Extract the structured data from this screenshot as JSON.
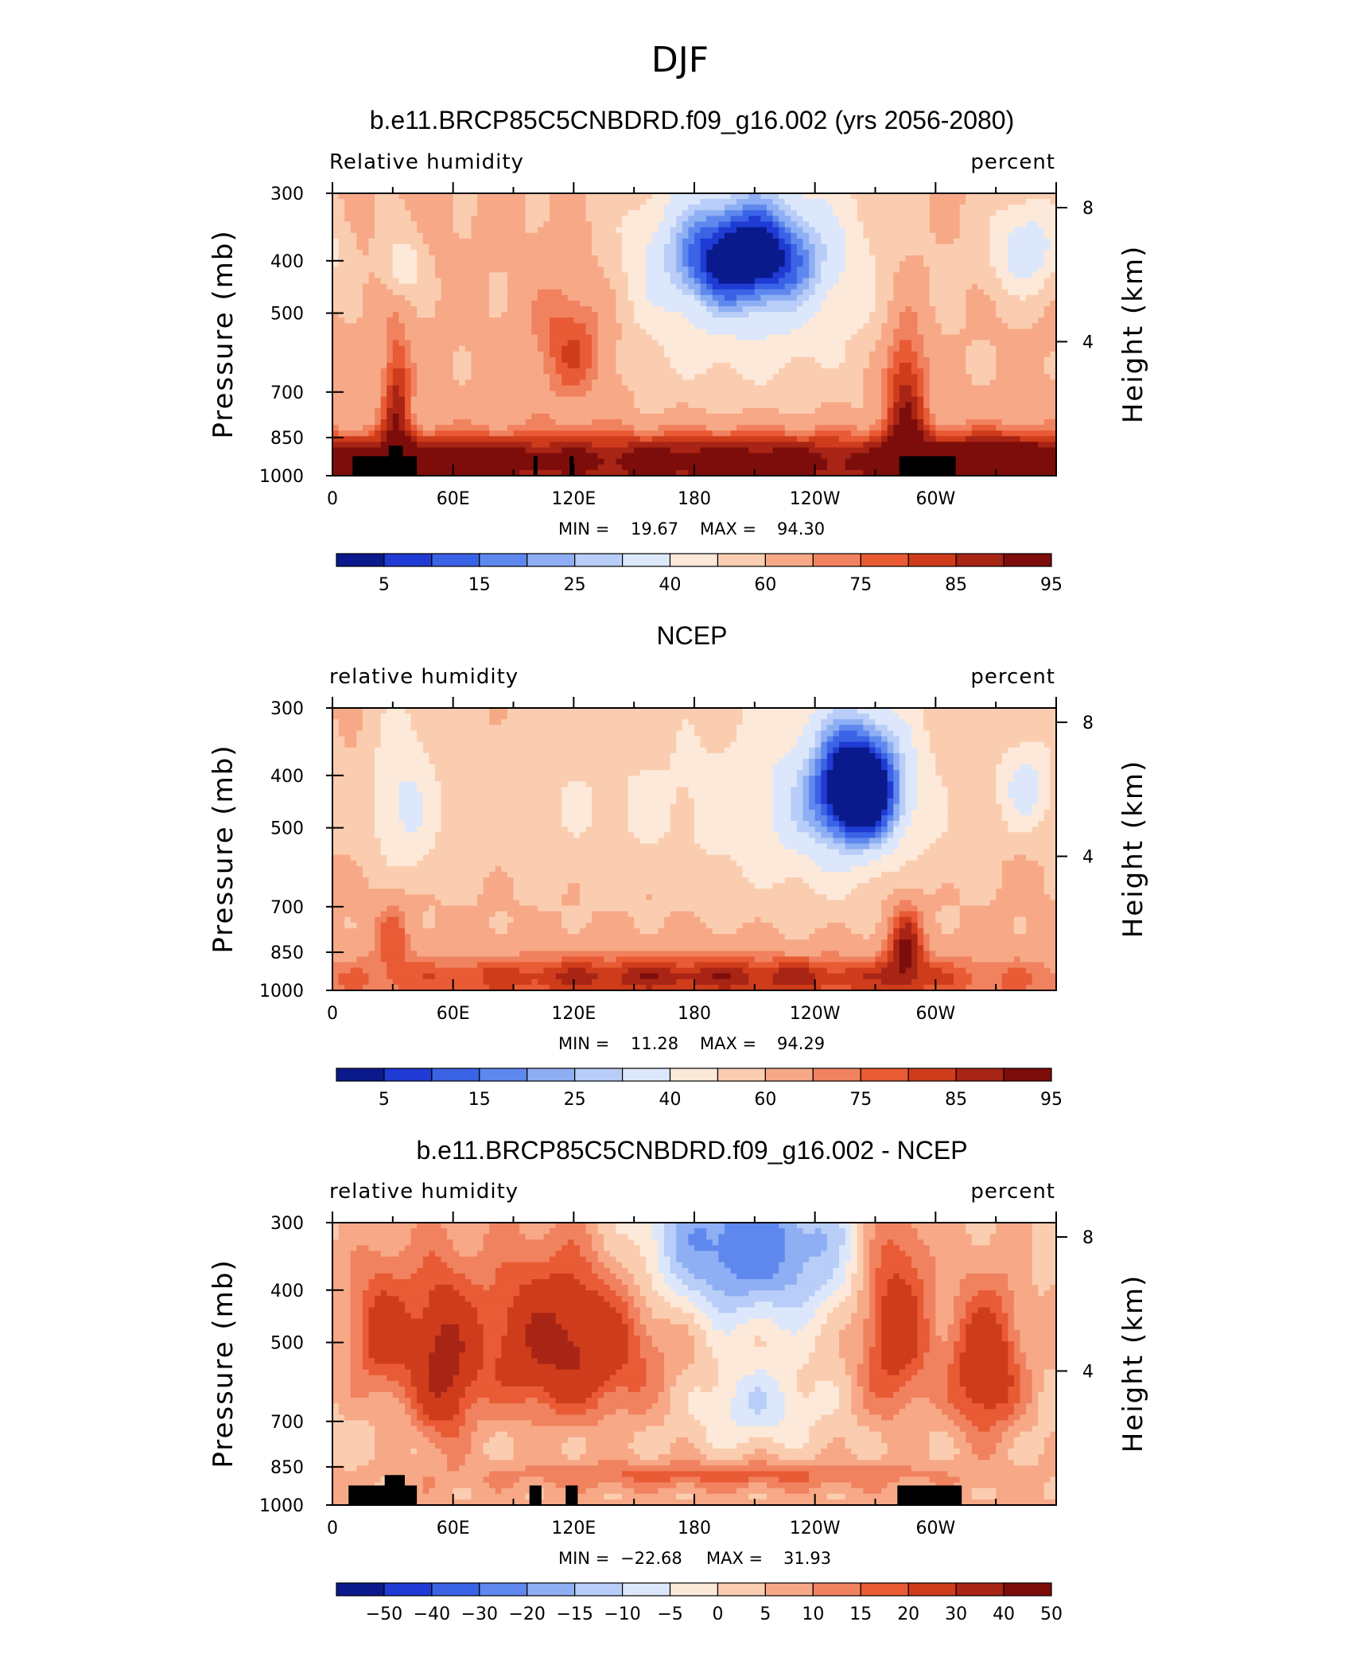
{
  "figure_title": "DJF",
  "chart_data": [
    {
      "type": "heatmap",
      "title": "b.e11.BRCP85C5CNBDRD.f09_g16.002 (yrs 2056-2080)",
      "left_label": "Relative humidity",
      "right_label": "percent",
      "ylabel": "Pressure (mb)",
      "y2label": "Height (km)",
      "pressure_ticks": [
        300,
        400,
        500,
        700,
        850,
        1000
      ],
      "height_ticks": [
        8,
        4
      ],
      "x_tick_labels": [
        "0",
        "60E",
        "120E",
        "180",
        "120W",
        "60W"
      ],
      "xlim": [
        0,
        360
      ],
      "min_label": "MIN =",
      "min_value": "19.67",
      "max_label": "MAX =",
      "max_value": "94.30",
      "colorbar_labels": [
        "5",
        "15",
        "25",
        "40",
        "60",
        "75",
        "85",
        "95"
      ],
      "colors": [
        "#0a1a8c",
        "#1f3bd4",
        "#3a63e6",
        "#5f88ee",
        "#8eaff3",
        "#b8cdf7",
        "#dce7fb",
        "#fde9d9",
        "#fbcdb0",
        "#f7a987",
        "#f1825f",
        "#e85b34",
        "#cf3c1b",
        "#a82414",
        "#7d0d0a"
      ],
      "blobs": [
        {
          "lon": 205,
          "p": 390,
          "dlon": 38,
          "dp": 90,
          "v": -45
        },
        {
          "lon": 205,
          "p": 450,
          "dlon": 70,
          "dp": 240,
          "v": -25
        },
        {
          "lon": 345,
          "p": 380,
          "dlon": 18,
          "dp": 80,
          "v": -30
        },
        {
          "lon": 35,
          "p": 410,
          "dlon": 10,
          "dp": 60,
          "v": -20
        },
        {
          "lon": 120,
          "p": 560,
          "dlon": 22,
          "dp": 170,
          "v": 22
        },
        {
          "lon": 32,
          "p": 720,
          "dlon": 8,
          "dp": 200,
          "v": 25
        },
        {
          "lon": 285,
          "p": 700,
          "dlon": 12,
          "dp": 230,
          "v": 28
        },
        {
          "lon": 200,
          "p": 930,
          "dlon": 120,
          "dp": 110,
          "v": 25
        },
        {
          "lon": 50,
          "p": 930,
          "dlon": 60,
          "dp": 90,
          "v": 22
        },
        {
          "lon": 330,
          "p": 930,
          "dlon": 40,
          "dp": 100,
          "v": 22
        }
      ],
      "base": 62,
      "lower_boost": 12,
      "topography": [
        {
          "lon0": 10,
          "lon1": 42,
          "p_top": 920
        },
        {
          "lon0": 28,
          "lon1": 35,
          "p_top": 880
        },
        {
          "lon0": 100,
          "lon1": 102,
          "p_top": 920
        },
        {
          "lon0": 118,
          "lon1": 120,
          "p_top": 920
        },
        {
          "lon0": 282,
          "lon1": 310,
          "p_top": 920
        }
      ]
    },
    {
      "type": "heatmap",
      "title": "NCEP",
      "left_label": "relative humidity",
      "right_label": "percent",
      "ylabel": "Pressure (mb)",
      "y2label": "Height (km)",
      "pressure_ticks": [
        300,
        400,
        500,
        700,
        850,
        1000
      ],
      "height_ticks": [
        8,
        4
      ],
      "x_tick_labels": [
        "0",
        "60E",
        "120E",
        "180",
        "120W",
        "60W"
      ],
      "xlim": [
        0,
        360
      ],
      "min_label": "MIN =",
      "min_value": "11.28",
      "max_label": "MAX =",
      "max_value": "94.29",
      "colorbar_labels": [
        "5",
        "15",
        "25",
        "40",
        "60",
        "75",
        "85",
        "95"
      ],
      "colors": [
        "#0a1a8c",
        "#1f3bd4",
        "#3a63e6",
        "#5f88ee",
        "#8eaff3",
        "#b8cdf7",
        "#dce7fb",
        "#fde9d9",
        "#fbcdb0",
        "#f7a987",
        "#f1825f",
        "#e85b34",
        "#cf3c1b",
        "#a82414",
        "#7d0d0a"
      ],
      "blobs": [
        {
          "lon": 262,
          "p": 420,
          "dlon": 22,
          "dp": 110,
          "v": -55
        },
        {
          "lon": 250,
          "p": 460,
          "dlon": 55,
          "dp": 220,
          "v": -25
        },
        {
          "lon": 35,
          "p": 460,
          "dlon": 18,
          "dp": 180,
          "v": -22
        },
        {
          "lon": 345,
          "p": 420,
          "dlon": 15,
          "dp": 90,
          "v": -25
        },
        {
          "lon": 140,
          "p": 450,
          "dlon": 80,
          "dp": 200,
          "v": -12
        },
        {
          "lon": 285,
          "p": 800,
          "dlon": 10,
          "dp": 160,
          "v": 25
        },
        {
          "lon": 30,
          "p": 760,
          "dlon": 10,
          "dp": 140,
          "v": 15
        },
        {
          "lon": 180,
          "p": 940,
          "dlon": 150,
          "dp": 80,
          "v": 20
        }
      ],
      "base": 62,
      "lower_boost": 8,
      "topography": []
    },
    {
      "type": "heatmap",
      "title": "b.e11.BRCP85C5CNBDRD.f09_g16.002 - NCEP",
      "left_label": "relative humidity",
      "right_label": "percent",
      "ylabel": "Pressure (mb)",
      "y2label": "Height (km)",
      "pressure_ticks": [
        300,
        400,
        500,
        700,
        850,
        1000
      ],
      "height_ticks": [
        8,
        4
      ],
      "x_tick_labels": [
        "0",
        "60E",
        "120E",
        "180",
        "120W",
        "60W"
      ],
      "xlim": [
        0,
        360
      ],
      "min_label": "MIN =",
      "min_value": "−22.68",
      "max_label": "MAX =",
      "max_value": "31.93",
      "colorbar_labels": [
        "−50",
        "−40",
        "−30",
        "−20",
        "−15",
        "−10",
        "−5",
        "0",
        "5",
        "10",
        "15",
        "20",
        "30",
        "40",
        "50"
      ],
      "colors": [
        "#0a1a8c",
        "#1f3bd4",
        "#3a63e6",
        "#5f88ee",
        "#8eaff3",
        "#b8cdf7",
        "#dce7fb",
        "#fde9d9",
        "#fbcdb0",
        "#f7a987",
        "#f1825f",
        "#e85b34",
        "#cf3c1b",
        "#a82414",
        "#7d0d0a"
      ],
      "blobs": [
        {
          "lon": 205,
          "p": 330,
          "dlon": 55,
          "dp": 120,
          "v": -28
        },
        {
          "lon": 210,
          "p": 650,
          "dlon": 28,
          "dp": 110,
          "v": -12
        },
        {
          "lon": 115,
          "p": 500,
          "dlon": 45,
          "dp": 180,
          "v": 30
        },
        {
          "lon": 55,
          "p": 560,
          "dlon": 15,
          "dp": 200,
          "v": 26
        },
        {
          "lon": 25,
          "p": 480,
          "dlon": 18,
          "dp": 150,
          "v": 20
        },
        {
          "lon": 280,
          "p": 450,
          "dlon": 18,
          "dp": 220,
          "v": 24
        },
        {
          "lon": 325,
          "p": 560,
          "dlon": 18,
          "dp": 180,
          "v": 26
        },
        {
          "lon": 190,
          "p": 880,
          "dlon": 110,
          "dp": 50,
          "v": 12
        }
      ],
      "base": 3,
      "lower_boost": 4,
      "topography": [
        {
          "lon0": 8,
          "lon1": 42,
          "p_top": 920
        },
        {
          "lon0": 26,
          "lon1": 36,
          "p_top": 880
        },
        {
          "lon0": 98,
          "lon1": 104,
          "p_top": 920
        },
        {
          "lon0": 116,
          "lon1": 122,
          "p_top": 920
        },
        {
          "lon0": 281,
          "lon1": 313,
          "p_top": 920
        }
      ]
    }
  ]
}
